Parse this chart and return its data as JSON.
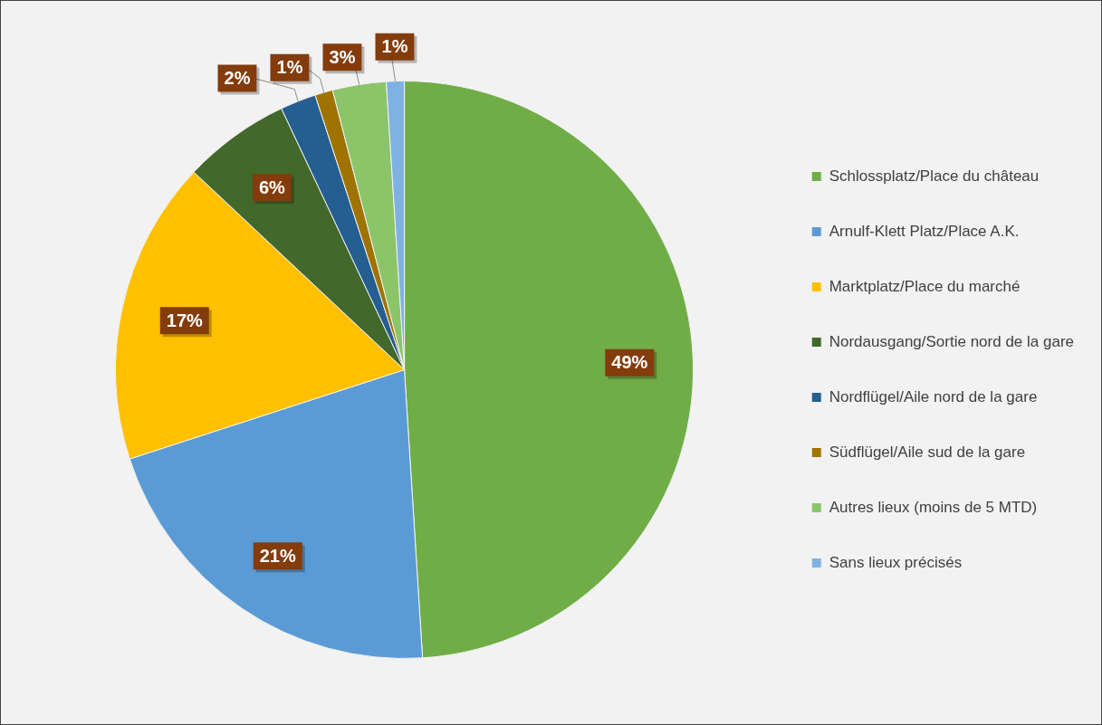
{
  "chart_data": {
    "type": "pie",
    "categories": [
      "Schlossplatz/Place du château",
      "Arnulf-Klett Platz/Place A.K.",
      "Marktplatz/Place du marché",
      "Nordausgang/Sortie nord de la gare",
      "Nordflügel/Aile nord de la gare",
      "Südflügel/Aile sud de la gare",
      "Autres lieux (moins de 5 MTD)",
      "Sans lieux précisés"
    ],
    "values": [
      49,
      21,
      17,
      6,
      2,
      1,
      3,
      1
    ],
    "colors": [
      "#70ad47",
      "#5b9bd5",
      "#ffc000",
      "#43682b",
      "#255e91",
      "#9e7300",
      "#8cc46a",
      "#7fb2e2"
    ],
    "value_labels": [
      "49%",
      "21%",
      "17%",
      "6%",
      "2%",
      "1%",
      "3%",
      "1%"
    ],
    "legend": "right"
  }
}
